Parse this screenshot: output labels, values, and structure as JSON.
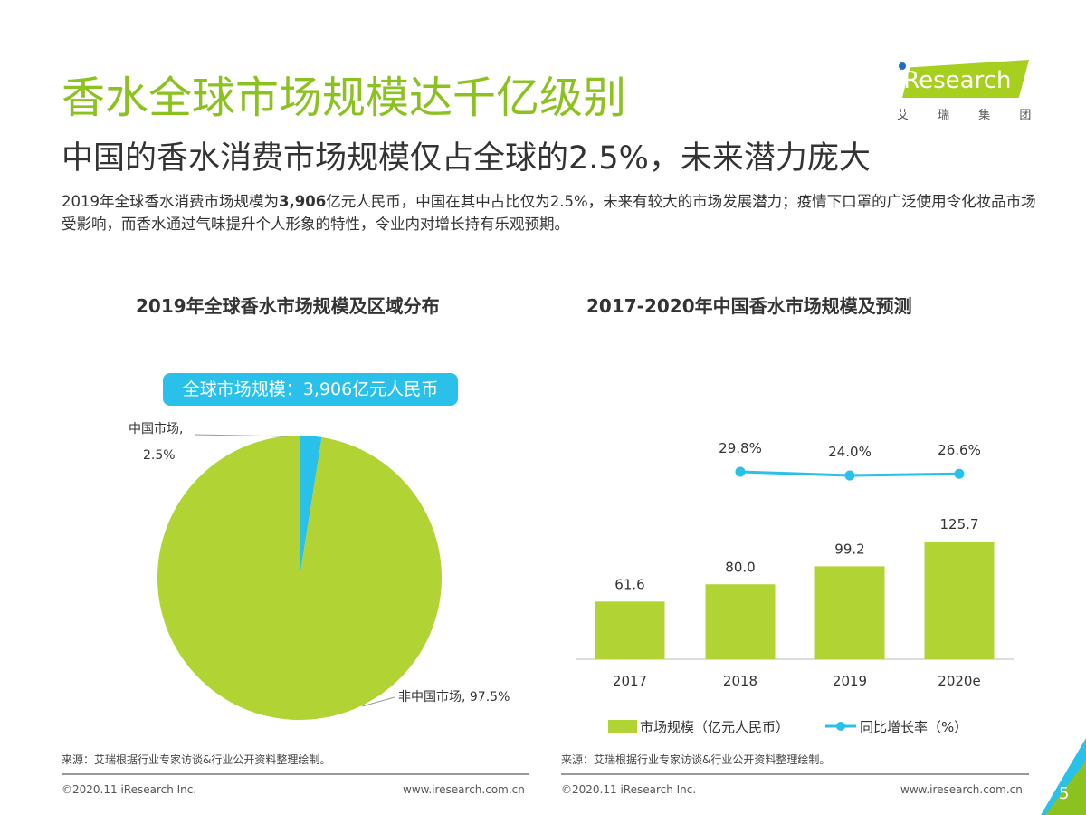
{
  "title": "香水全球市场规模达千亿级别",
  "subtitle": "中国的香水消费市场规模仅占全球的2.5%，未来潜力庞大",
  "description": {
    "before": "2019年全球香水消费市场规模为",
    "bold": "3,906",
    "after": "亿元人民币，中国在其中占比仅为2.5%，未来有较大的市场发展潜力；疫情下口罩的广泛使用令化妆品市场受影响，而香水通过气味提升个人形象的特性，令业内对增长持有乐观预期。"
  },
  "logo": {
    "text": "iResearch",
    "sub": "艾 瑞 集 团"
  },
  "colors": {
    "green": "#b1d334",
    "cyan": "#29c0ea",
    "title_green": "#8cc21f"
  },
  "chart_data": [
    {
      "type": "pie",
      "title": "2019年全球香水市场规模及区域分布",
      "badge": "全球市场规模：3,906亿元人民币",
      "slices": [
        {
          "label": "中国市场,",
          "value": 2.5,
          "value_label": "2.5%",
          "color": "#29c0ea"
        },
        {
          "label": "非中国市场, 97.5%",
          "value": 97.5,
          "color": "#b1d334"
        }
      ]
    },
    {
      "type": "bar",
      "title": "2017-2020年中国香水市场规模及预测",
      "categories": [
        "2017",
        "2018",
        "2019",
        "2020e"
      ],
      "series": [
        {
          "name": "市场规模（亿元人民币）",
          "type": "bar",
          "values": [
            61.6,
            80.0,
            99.2,
            125.7
          ],
          "labels": [
            "61.6",
            "80.0",
            "99.2",
            "125.7"
          ],
          "color": "#b1d334"
        },
        {
          "name": "同比增长率（%）",
          "type": "line",
          "values": [
            null,
            29.8,
            24.0,
            26.6
          ],
          "labels": [
            "",
            "29.8%",
            "24.0%",
            "26.6%"
          ],
          "color": "#29c0ea"
        }
      ],
      "legend": "bottom"
    }
  ],
  "footer": {
    "source": "来源：艾瑞根据行业专家访谈&行业公开资料整理绘制。",
    "copyright": "©2020.11 iResearch Inc.",
    "url": "www.iresearch.com.cn",
    "page": "5"
  }
}
